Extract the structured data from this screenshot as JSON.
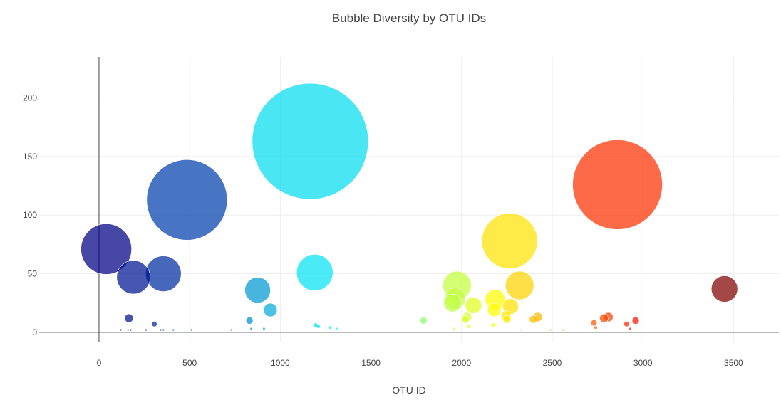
{
  "chart_data": {
    "type": "scatter",
    "title": "Bubble Diversity by OTU IDs",
    "xlabel": "OTU ID",
    "ylabel": "",
    "xlim": [
      -330,
      3750
    ],
    "ylim": [
      -8,
      235
    ],
    "xticks": [
      0,
      500,
      1000,
      1500,
      2000,
      2500,
      3000,
      3500
    ],
    "yticks": [
      0,
      50,
      100,
      150,
      200
    ],
    "grid": true,
    "legend": "none",
    "colorscale": "Jet",
    "series": [
      {
        "points": [
          {
            "x": 40,
            "y": 71,
            "size": 71
          },
          {
            "x": 190,
            "y": 47,
            "size": 47
          },
          {
            "x": 355,
            "y": 50,
            "size": 50
          },
          {
            "x": 485,
            "y": 113,
            "size": 113
          },
          {
            "x": 165,
            "y": 12,
            "size": 12
          },
          {
            "x": 305,
            "y": 7,
            "size": 7
          },
          {
            "x": 875,
            "y": 36,
            "size": 36
          },
          {
            "x": 945,
            "y": 19,
            "size": 19
          },
          {
            "x": 830,
            "y": 10,
            "size": 10
          },
          {
            "x": 1165,
            "y": 163,
            "size": 163
          },
          {
            "x": 1190,
            "y": 51,
            "size": 51
          },
          {
            "x": 1195,
            "y": 6,
            "size": 6
          },
          {
            "x": 1210,
            "y": 5,
            "size": 5
          },
          {
            "x": 1790,
            "y": 10,
            "size": 10
          },
          {
            "x": 1975,
            "y": 40,
            "size": 40
          },
          {
            "x": 1965,
            "y": 29,
            "size": 29
          },
          {
            "x": 1950,
            "y": 25,
            "size": 25
          },
          {
            "x": 2065,
            "y": 23,
            "size": 23
          },
          {
            "x": 2030,
            "y": 13,
            "size": 13
          },
          {
            "x": 2020,
            "y": 11,
            "size": 11
          },
          {
            "x": 2185,
            "y": 28,
            "size": 28
          },
          {
            "x": 2180,
            "y": 19,
            "size": 19
          },
          {
            "x": 2175,
            "y": 6,
            "size": 6
          },
          {
            "x": 2265,
            "y": 78,
            "size": 78
          },
          {
            "x": 2320,
            "y": 40,
            "size": 40
          },
          {
            "x": 2270,
            "y": 22,
            "size": 22
          },
          {
            "x": 2245,
            "y": 14,
            "size": 14
          },
          {
            "x": 2250,
            "y": 11,
            "size": 11
          },
          {
            "x": 2420,
            "y": 13,
            "size": 13
          },
          {
            "x": 2395,
            "y": 11,
            "size": 11
          },
          {
            "x": 2860,
            "y": 126,
            "size": 126
          },
          {
            "x": 2810,
            "y": 13,
            "size": 13
          },
          {
            "x": 2785,
            "y": 12,
            "size": 12
          },
          {
            "x": 2730,
            "y": 8,
            "size": 8
          },
          {
            "x": 2740,
            "y": 4,
            "size": 4
          },
          {
            "x": 2960,
            "y": 10,
            "size": 10
          },
          {
            "x": 2910,
            "y": 7,
            "size": 7
          },
          {
            "x": 3450,
            "y": 37,
            "size": 37
          },
          {
            "x": 120,
            "y": 2,
            "size": 2
          },
          {
            "x": 160,
            "y": 2,
            "size": 2
          },
          {
            "x": 175,
            "y": 2,
            "size": 2
          },
          {
            "x": 260,
            "y": 2,
            "size": 2
          },
          {
            "x": 340,
            "y": 2,
            "size": 2
          },
          {
            "x": 355,
            "y": 2,
            "size": 2
          },
          {
            "x": 410,
            "y": 2,
            "size": 2
          },
          {
            "x": 510,
            "y": 2,
            "size": 2
          },
          {
            "x": 730,
            "y": 2,
            "size": 2
          },
          {
            "x": 840,
            "y": 3,
            "size": 3
          },
          {
            "x": 910,
            "y": 3,
            "size": 3
          },
          {
            "x": 1275,
            "y": 4,
            "size": 4
          },
          {
            "x": 1310,
            "y": 3,
            "size": 3
          },
          {
            "x": 1960,
            "y": 3,
            "size": 3
          },
          {
            "x": 2040,
            "y": 5,
            "size": 5
          },
          {
            "x": 2330,
            "y": 2,
            "size": 2
          },
          {
            "x": 2490,
            "y": 2,
            "size": 2
          },
          {
            "x": 2560,
            "y": 2,
            "size": 2
          },
          {
            "x": 2930,
            "y": 3,
            "size": 3
          }
        ]
      }
    ]
  }
}
